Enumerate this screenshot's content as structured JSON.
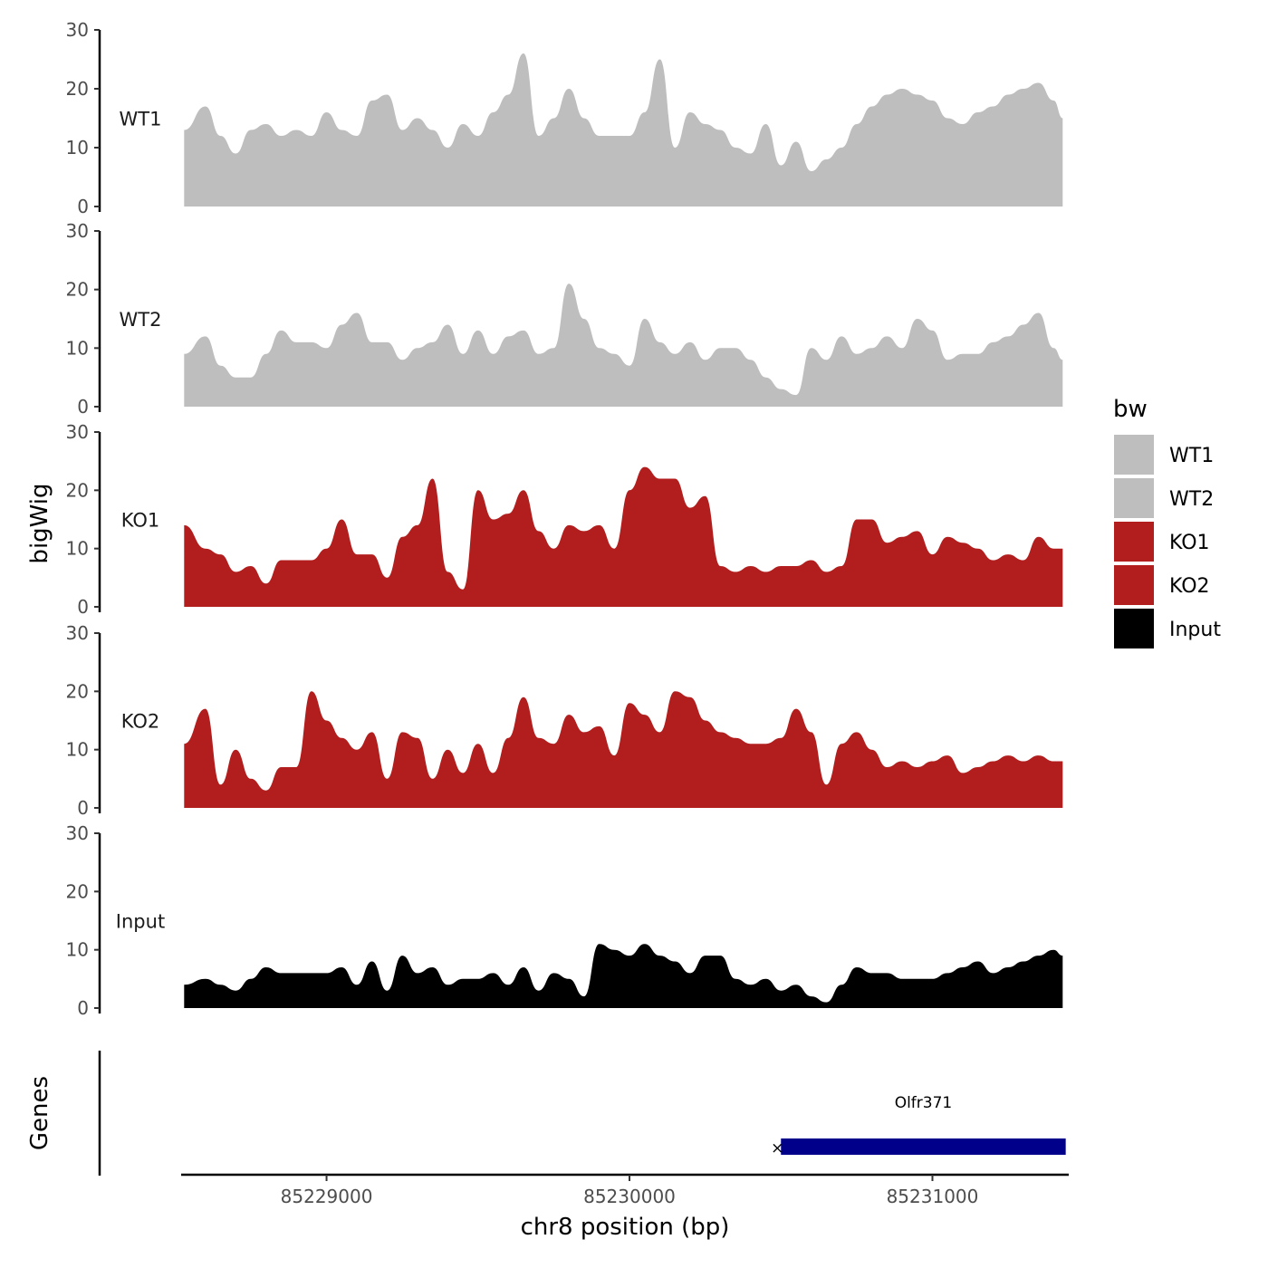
{
  "chart_data": {
    "type": "area",
    "ylabel": "bigWig",
    "xlabel": "chr8 position (bp)",
    "xlim": [
      85228520,
      85231450
    ],
    "ylim": [
      0,
      30
    ],
    "y_ticks": [
      "0",
      "10",
      "20",
      "30"
    ],
    "x_ticks": [
      {
        "value": 85229000,
        "label": "85229000"
      },
      {
        "value": 85230000,
        "label": "85230000"
      },
      {
        "value": 85231000,
        "label": "85231000"
      }
    ],
    "legend": {
      "title": "bw",
      "position": "right"
    },
    "genes_label": "Genes",
    "colors": {
      "WT1": "#bebebe",
      "WT2": "#bebebe",
      "KO1": "#b21e1e",
      "KO2": "#b21e1e",
      "Input": "#000000",
      "gene": "#00008b"
    },
    "x": [
      85228530,
      85228600,
      85228650,
      85228700,
      85228750,
      85228800,
      85228850,
      85228900,
      85228950,
      85229000,
      85229050,
      85229100,
      85229150,
      85229200,
      85229250,
      85229300,
      85229350,
      85229400,
      85229450,
      85229500,
      85229550,
      85229600,
      85229650,
      85229700,
      85229750,
      85229800,
      85229850,
      85229900,
      85229950,
      85230000,
      85230050,
      85230100,
      85230150,
      85230200,
      85230250,
      85230300,
      85230350,
      85230400,
      85230450,
      85230500,
      85230550,
      85230600,
      85230650,
      85230700,
      85230750,
      85230800,
      85230850,
      85230900,
      85230950,
      85231000,
      85231050,
      85231100,
      85231150,
      85231200,
      85231250,
      85231300,
      85231350,
      85231400,
      85231430
    ],
    "series": [
      {
        "name": "WT1",
        "values": [
          13,
          17,
          12,
          9,
          13,
          14,
          12,
          13,
          12,
          16,
          13,
          12,
          18,
          19,
          13,
          15,
          13,
          10,
          14,
          12,
          16,
          19,
          26,
          12,
          15,
          20,
          15,
          12,
          12,
          12,
          16,
          25,
          10,
          16,
          14,
          13,
          10,
          9,
          14,
          7,
          11,
          6,
          8,
          10,
          14,
          17,
          19,
          20,
          19,
          18,
          15,
          14,
          16,
          17,
          19,
          20,
          21,
          18,
          15
        ]
      },
      {
        "name": "WT2",
        "values": [
          9,
          12,
          7,
          5,
          5,
          9,
          13,
          11,
          11,
          10,
          14,
          16,
          11,
          11,
          8,
          10,
          11,
          14,
          9,
          13,
          9,
          12,
          13,
          9,
          10,
          21,
          15,
          10,
          9,
          7,
          15,
          11,
          9,
          11,
          8,
          10,
          10,
          8,
          5,
          3,
          2,
          10,
          8,
          12,
          9,
          10,
          12,
          10,
          15,
          13,
          8,
          9,
          9,
          11,
          12,
          14,
          16,
          10,
          8
        ]
      },
      {
        "name": "KO1",
        "values": [
          14,
          10,
          9,
          6,
          7,
          4,
          8,
          8,
          8,
          10,
          15,
          9,
          9,
          5,
          12,
          14,
          22,
          6,
          3,
          20,
          15,
          16,
          20,
          13,
          10,
          14,
          13,
          14,
          10,
          20,
          24,
          22,
          22,
          17,
          19,
          7,
          6,
          7,
          6,
          7,
          7,
          8,
          6,
          7,
          15,
          15,
          11,
          12,
          13,
          9,
          12,
          11,
          10,
          8,
          9,
          8,
          12,
          10,
          10
        ]
      },
      {
        "name": "KO2",
        "values": [
          11,
          17,
          4,
          10,
          5,
          3,
          7,
          7,
          20,
          15,
          12,
          10,
          13,
          5,
          13,
          12,
          5,
          10,
          6,
          11,
          6,
          12,
          19,
          12,
          11,
          16,
          13,
          14,
          9,
          18,
          16,
          13,
          20,
          19,
          15,
          13,
          12,
          11,
          11,
          12,
          17,
          13,
          4,
          11,
          13,
          10,
          7,
          8,
          7,
          8,
          9,
          6,
          7,
          8,
          9,
          8,
          9,
          8,
          8
        ]
      },
      {
        "name": "Input",
        "values": [
          4,
          5,
          4,
          3,
          5,
          7,
          6,
          6,
          6,
          6,
          7,
          4,
          8,
          3,
          9,
          6,
          7,
          4,
          5,
          5,
          6,
          4,
          7,
          3,
          6,
          5,
          2,
          11,
          10,
          9,
          11,
          9,
          8,
          6,
          9,
          9,
          5,
          4,
          5,
          3,
          4,
          2,
          1,
          4,
          7,
          6,
          6,
          5,
          5,
          5,
          6,
          7,
          8,
          6,
          7,
          8,
          9,
          10,
          9
        ]
      }
    ],
    "gene": {
      "name": "Olfr371",
      "start": 85230500,
      "end": 85231440,
      "strand_symbol": "×"
    }
  }
}
